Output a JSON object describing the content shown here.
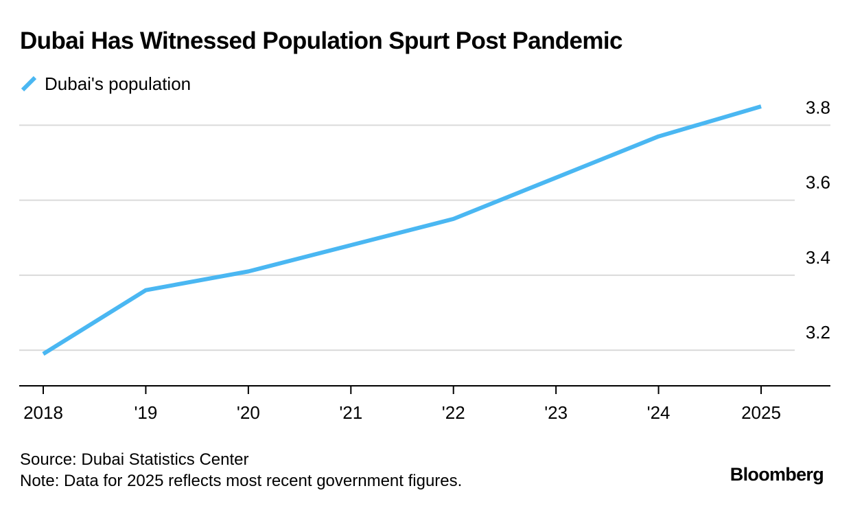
{
  "header": {
    "title": "Dubai Has Witnessed Population Spurt Post Pandemic"
  },
  "legend": {
    "label": "Dubai's population"
  },
  "colors": {
    "series": "#4ab7f2",
    "grid": "#dadada",
    "axis": "#000000",
    "text": "#000000"
  },
  "chart_data": {
    "type": "line",
    "title": "Dubai Has Witnessed Population Spurt Post Pandemic",
    "xlabel": "",
    "ylabel": "",
    "x": [
      2018,
      2019,
      2020,
      2021,
      2022,
      2023,
      2024,
      2025
    ],
    "x_tick_labels": [
      "2018",
      "'19",
      "'20",
      "'21",
      "'22",
      "'23",
      "'24",
      "2025"
    ],
    "y_ticks": [
      3.2,
      3.4,
      3.6,
      3.8
    ],
    "y_tick_labels": [
      "3.2",
      "3.4",
      "3.6",
      "3.8"
    ],
    "ylim": [
      3.105,
      3.85
    ],
    "grid": true,
    "legend_position": "top-left",
    "series": [
      {
        "name": "Dubai's population",
        "values": [
          3.19,
          3.36,
          3.41,
          3.48,
          3.55,
          3.66,
          3.77,
          3.85
        ]
      }
    ]
  },
  "footer": {
    "source": "Source: Dubai Statistics Center",
    "note": "Note: Data for 2025 reflects most recent government figures.",
    "brand": "Bloomberg"
  }
}
